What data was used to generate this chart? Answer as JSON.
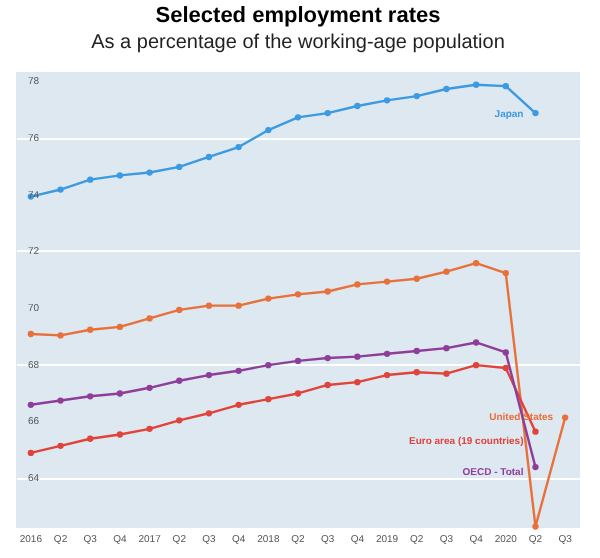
{
  "chart_data": {
    "type": "line",
    "title": "Selected employment rates",
    "subtitle": "As a percentage of the working-age population",
    "categories": [
      "2016",
      "Q2",
      "Q3",
      "Q4",
      "2017",
      "Q2",
      "Q3",
      "Q4",
      "2018",
      "Q2",
      "Q3",
      "Q4",
      "2019",
      "Q2",
      "Q3",
      "Q4",
      "2020",
      "Q2",
      "Q3"
    ],
    "series": [
      {
        "name": "Japan",
        "color": "#3b9ae1",
        "values": [
          73.9,
          74.15,
          74.5,
          74.65,
          74.75,
          74.95,
          75.3,
          75.65,
          76.25,
          76.7,
          76.85,
          77.1,
          77.3,
          77.45,
          77.7,
          77.85,
          77.8,
          76.85,
          null
        ]
      },
      {
        "name": "United States",
        "color": "#e8703a",
        "values": [
          69.05,
          69.0,
          69.2,
          69.3,
          69.6,
          69.9,
          70.05,
          70.05,
          70.3,
          70.45,
          70.55,
          70.8,
          70.9,
          71.0,
          71.25,
          71.55,
          71.2,
          62.25,
          66.1
        ]
      },
      {
        "name": "Euro area (19 countries)",
        "color": "#e0433a",
        "values": [
          64.85,
          65.1,
          65.35,
          65.5,
          65.7,
          66.0,
          66.25,
          66.55,
          66.75,
          66.95,
          67.25,
          67.35,
          67.6,
          67.7,
          67.65,
          67.95,
          67.85,
          65.6,
          null
        ]
      },
      {
        "name": "OECD - Total",
        "color": "#8e3e99",
        "values": [
          66.55,
          66.7,
          66.85,
          66.95,
          67.15,
          67.4,
          67.6,
          67.75,
          67.95,
          68.1,
          68.2,
          68.25,
          68.35,
          68.45,
          68.55,
          68.75,
          68.4,
          64.35,
          null
        ]
      }
    ],
    "ylim": [
      62.2,
      78.3
    ],
    "yticks": [
      64,
      66,
      68,
      70,
      72,
      74,
      76,
      78
    ],
    "grid": "y",
    "legend": false,
    "marker": "circle",
    "line_style": "solid"
  }
}
